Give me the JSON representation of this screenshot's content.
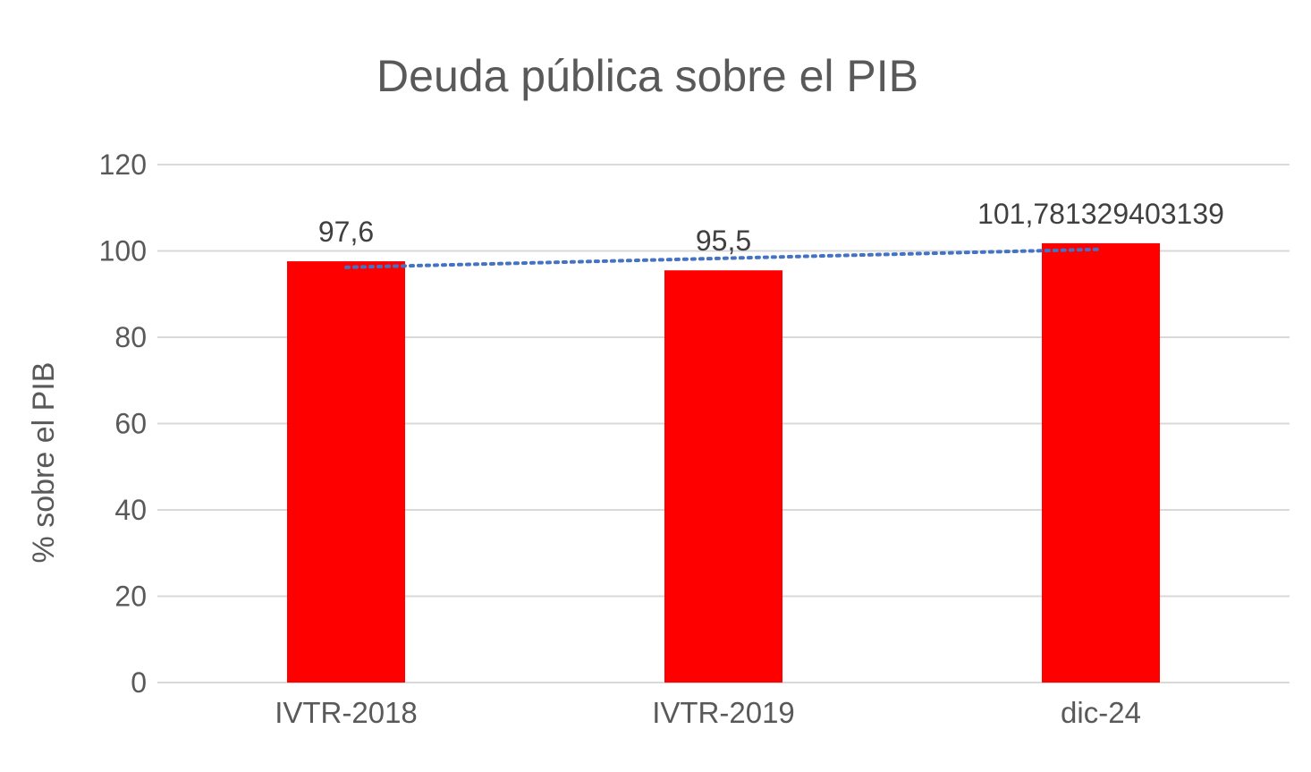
{
  "chart_data": {
    "type": "bar",
    "title": "Deuda pública sobre el PIB",
    "xlabel": "",
    "ylabel": "% sobre el PIB",
    "categories": [
      "IVTR-2018",
      "IVTR-2019",
      "dic-24"
    ],
    "values": [
      97.6,
      95.5,
      101.781329403139
    ],
    "data_labels": [
      "97,6",
      "95,5",
      "101,781329403139"
    ],
    "ylim": [
      0,
      120
    ],
    "yticks": [
      0,
      20,
      40,
      60,
      80,
      100,
      120
    ],
    "grid": true,
    "legend": "none",
    "bar_color": "#ff0000",
    "trendline": {
      "type": "linear",
      "style": "dotted",
      "color": "#4472c4"
    }
  }
}
